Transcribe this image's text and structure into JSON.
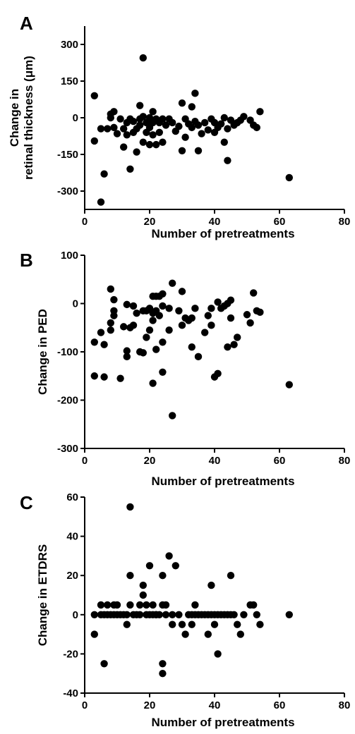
{
  "chart_data": [
    {
      "panel": "A",
      "type": "scatter",
      "xlabel": "Number of pretreatments",
      "ylabel": [
        "Change in",
        "retinal thickness (μm)"
      ],
      "xlim": [
        0,
        80
      ],
      "ylim": [
        -375,
        375
      ],
      "xticks": [
        0,
        20,
        40,
        60,
        80
      ],
      "yticks": [
        300,
        150,
        0,
        -150,
        -300
      ],
      "points": [
        [
          3,
          90
        ],
        [
          3,
          -95
        ],
        [
          5,
          -345
        ],
        [
          5,
          -45
        ],
        [
          6,
          -230
        ],
        [
          7,
          -45
        ],
        [
          8,
          15
        ],
        [
          8,
          0
        ],
        [
          9,
          25
        ],
        [
          9,
          -40
        ],
        [
          10,
          -65
        ],
        [
          11,
          -5
        ],
        [
          12,
          -45
        ],
        [
          12,
          -120
        ],
        [
          13,
          -20
        ],
        [
          13,
          -70
        ],
        [
          14,
          -5
        ],
        [
          14,
          -210
        ],
        [
          15,
          -60
        ],
        [
          15,
          -15
        ],
        [
          16,
          -45
        ],
        [
          16,
          -140
        ],
        [
          17,
          50
        ],
        [
          17,
          -5
        ],
        [
          17,
          -30
        ],
        [
          18,
          245
        ],
        [
          18,
          5
        ],
        [
          18,
          -100
        ],
        [
          19,
          -20
        ],
        [
          19,
          -60
        ],
        [
          20,
          0
        ],
        [
          20,
          -40
        ],
        [
          20,
          -110
        ],
        [
          21,
          25
        ],
        [
          21,
          -20
        ],
        [
          21,
          -70
        ],
        [
          22,
          -5
        ],
        [
          22,
          -110
        ],
        [
          23,
          -20
        ],
        [
          23,
          -60
        ],
        [
          24,
          -5
        ],
        [
          24,
          -100
        ],
        [
          25,
          -30
        ],
        [
          26,
          -5
        ],
        [
          27,
          -20
        ],
        [
          28,
          -55
        ],
        [
          29,
          -35
        ],
        [
          30,
          60
        ],
        [
          30,
          -135
        ],
        [
          31,
          -5
        ],
        [
          31,
          -80
        ],
        [
          32,
          -25
        ],
        [
          33,
          45
        ],
        [
          33,
          -40
        ],
        [
          34,
          100
        ],
        [
          34,
          -15
        ],
        [
          35,
          -135
        ],
        [
          35,
          -30
        ],
        [
          36,
          -65
        ],
        [
          37,
          -20
        ],
        [
          38,
          -50
        ],
        [
          39,
          -5
        ],
        [
          40,
          -20
        ],
        [
          40,
          -60
        ],
        [
          41,
          -40
        ],
        [
          42,
          -25
        ],
        [
          43,
          0
        ],
        [
          43,
          -100
        ],
        [
          44,
          -175
        ],
        [
          44,
          -45
        ],
        [
          45,
          -10
        ],
        [
          46,
          -30
        ],
        [
          47,
          -20
        ],
        [
          48,
          -10
        ],
        [
          49,
          5
        ],
        [
          51,
          -10
        ],
        [
          52,
          -30
        ],
        [
          53,
          -40
        ],
        [
          54,
          25
        ],
        [
          63,
          -245
        ]
      ]
    },
    {
      "panel": "B",
      "type": "scatter",
      "xlabel": "Number of pretreatments",
      "ylabel": [
        "Change in PED"
      ],
      "xlim": [
        0,
        80
      ],
      "ylim": [
        -300,
        100
      ],
      "xticks": [
        0,
        20,
        40,
        60,
        80
      ],
      "yticks": [
        100,
        0,
        -100,
        -200,
        -300
      ],
      "points": [
        [
          3,
          -80
        ],
        [
          3,
          -150
        ],
        [
          5,
          -60
        ],
        [
          6,
          -85
        ],
        [
          6,
          -152
        ],
        [
          8,
          30
        ],
        [
          8,
          -40
        ],
        [
          8,
          -55
        ],
        [
          9,
          8
        ],
        [
          9,
          -15
        ],
        [
          9,
          -25
        ],
        [
          12,
          -48
        ],
        [
          13,
          -2
        ],
        [
          13,
          -98
        ],
        [
          13,
          -110
        ],
        [
          11,
          -155
        ],
        [
          14,
          -50
        ],
        [
          15,
          -5
        ],
        [
          15,
          -45
        ],
        [
          16,
          -20
        ],
        [
          17,
          -100
        ],
        [
          18,
          -15
        ],
        [
          18,
          -102
        ],
        [
          19,
          -15
        ],
        [
          19,
          -70
        ],
        [
          20,
          -10
        ],
        [
          20,
          -55
        ],
        [
          21,
          15
        ],
        [
          21,
          -20
        ],
        [
          21,
          -35
        ],
        [
          21,
          -165
        ],
        [
          22,
          15
        ],
        [
          22,
          -15
        ],
        [
          22,
          -95
        ],
        [
          23,
          15
        ],
        [
          23,
          -25
        ],
        [
          24,
          20
        ],
        [
          24,
          -5
        ],
        [
          24,
          -80
        ],
        [
          24,
          -142
        ],
        [
          26,
          -10
        ],
        [
          26,
          -55
        ],
        [
          27,
          42
        ],
        [
          27,
          -232
        ],
        [
          29,
          -15
        ],
        [
          30,
          25
        ],
        [
          30,
          -45
        ],
        [
          31,
          -30
        ],
        [
          32,
          -35
        ],
        [
          33,
          -30
        ],
        [
          33,
          -90
        ],
        [
          34,
          -10
        ],
        [
          35,
          -110
        ],
        [
          37,
          -60
        ],
        [
          38,
          -25
        ],
        [
          39,
          -10
        ],
        [
          39,
          -45
        ],
        [
          40,
          -152
        ],
        [
          41,
          3
        ],
        [
          41,
          -145
        ],
        [
          42,
          -10
        ],
        [
          43,
          -5
        ],
        [
          44,
          0
        ],
        [
          44,
          -90
        ],
        [
          45,
          7
        ],
        [
          45,
          -30
        ],
        [
          46,
          -85
        ],
        [
          47,
          -70
        ],
        [
          50,
          -23
        ],
        [
          51,
          -40
        ],
        [
          52,
          22
        ],
        [
          53,
          -15
        ],
        [
          54,
          -18
        ],
        [
          63,
          -168
        ]
      ]
    },
    {
      "panel": "C",
      "type": "scatter",
      "xlabel": "Number of pretreatments",
      "ylabel": [
        "Change in ETDRS"
      ],
      "xlim": [
        0,
        80
      ],
      "ylim": [
        -40,
        60
      ],
      "xticks": [
        0,
        20,
        40,
        60,
        80
      ],
      "yticks": [
        60,
        40,
        20,
        0,
        -20,
        -40
      ],
      "points": [
        [
          3,
          0
        ],
        [
          3,
          -10
        ],
        [
          5,
          0
        ],
        [
          5,
          5
        ],
        [
          6,
          -25
        ],
        [
          6,
          0
        ],
        [
          7,
          0
        ],
        [
          7,
          5
        ],
        [
          8,
          0
        ],
        [
          9,
          5
        ],
        [
          9,
          0
        ],
        [
          10,
          0
        ],
        [
          10,
          5
        ],
        [
          11,
          0
        ],
        [
          12,
          0
        ],
        [
          13,
          0
        ],
        [
          13,
          -5
        ],
        [
          14,
          55
        ],
        [
          14,
          20
        ],
        [
          14,
          5
        ],
        [
          15,
          0
        ],
        [
          16,
          0
        ],
        [
          17,
          5
        ],
        [
          17,
          0
        ],
        [
          18,
          10
        ],
        [
          18,
          15
        ],
        [
          19,
          0
        ],
        [
          19,
          5
        ],
        [
          20,
          0
        ],
        [
          20,
          25
        ],
        [
          21,
          0
        ],
        [
          21,
          5
        ],
        [
          22,
          0
        ],
        [
          22,
          0
        ],
        [
          23,
          0
        ],
        [
          24,
          20
        ],
        [
          24,
          5
        ],
        [
          24,
          -25
        ],
        [
          24,
          -30
        ],
        [
          25,
          0
        ],
        [
          25,
          5
        ],
        [
          26,
          30
        ],
        [
          27,
          -5
        ],
        [
          27,
          0
        ],
        [
          28,
          25
        ],
        [
          29,
          0
        ],
        [
          30,
          -5
        ],
        [
          31,
          -10
        ],
        [
          32,
          0
        ],
        [
          33,
          0
        ],
        [
          33,
          -5
        ],
        [
          34,
          0
        ],
        [
          34,
          5
        ],
        [
          35,
          0
        ],
        [
          36,
          0
        ],
        [
          37,
          0
        ],
        [
          38,
          0
        ],
        [
          38,
          -10
        ],
        [
          39,
          15
        ],
        [
          39,
          0
        ],
        [
          40,
          -5
        ],
        [
          40,
          0
        ],
        [
          41,
          -20
        ],
        [
          41,
          0
        ],
        [
          42,
          0
        ],
        [
          43,
          0
        ],
        [
          44,
          0
        ],
        [
          45,
          20
        ],
        [
          45,
          0
        ],
        [
          46,
          0
        ],
        [
          47,
          -5
        ],
        [
          48,
          -10
        ],
        [
          49,
          0
        ],
        [
          51,
          5
        ],
        [
          52,
          5
        ],
        [
          53,
          0
        ],
        [
          54,
          -5
        ],
        [
          63,
          0
        ]
      ]
    }
  ]
}
